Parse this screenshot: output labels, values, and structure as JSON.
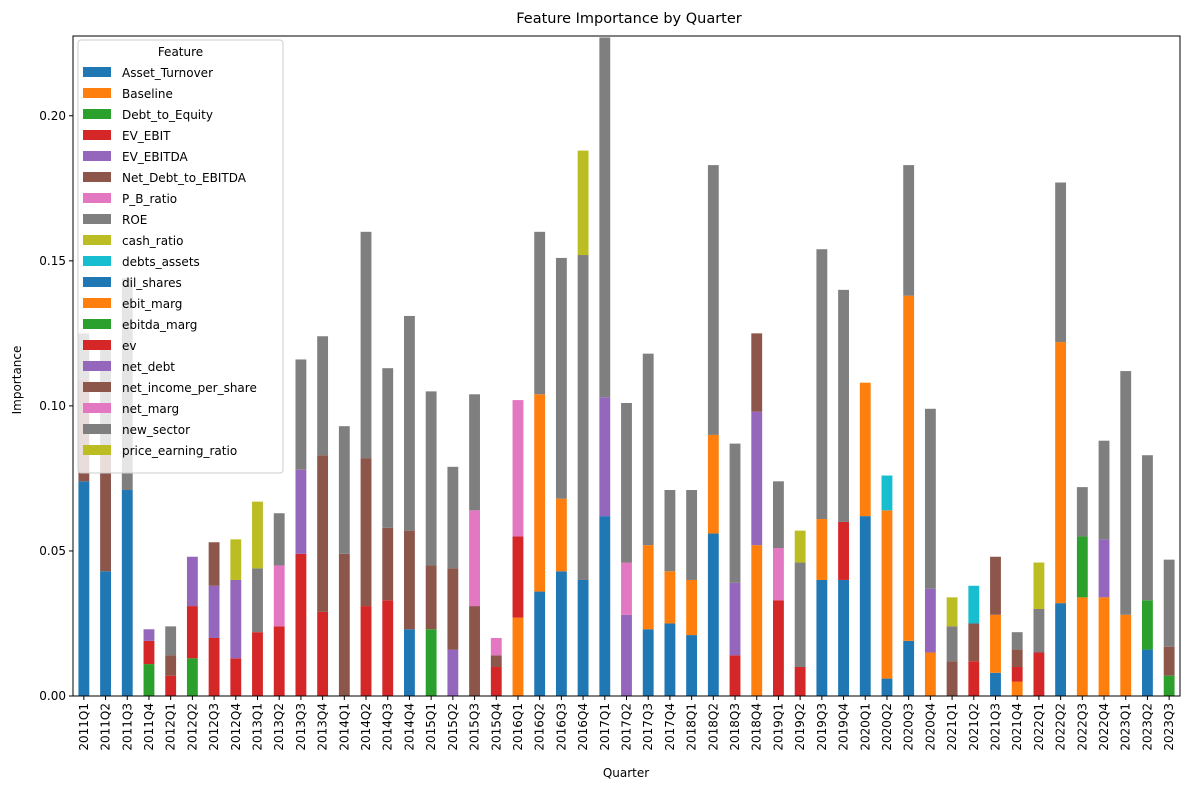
{
  "chart_data": {
    "type": "bar",
    "stacked": true,
    "title": "Feature Importance by Quarter",
    "xlabel": "Quarter",
    "ylabel": "Importance",
    "ylim": [
      0,
      0.2275
    ],
    "yticks": [
      0.0,
      0.05,
      0.1,
      0.15,
      0.2
    ],
    "ytick_labels": [
      "0.00",
      "0.05",
      "0.10",
      "0.15",
      "0.20"
    ],
    "grid": false,
    "legend": {
      "title": "Feature",
      "placement": "top-left"
    },
    "categories": [
      "2011Q1",
      "2011Q2",
      "2011Q3",
      "2011Q4",
      "2012Q1",
      "2012Q2",
      "2012Q3",
      "2012Q4",
      "2013Q1",
      "2013Q2",
      "2013Q3",
      "2013Q4",
      "2014Q1",
      "2014Q2",
      "2014Q3",
      "2014Q4",
      "2015Q1",
      "2015Q2",
      "2015Q3",
      "2015Q4",
      "2016Q1",
      "2016Q2",
      "2016Q3",
      "2016Q4",
      "2017Q1",
      "2017Q2",
      "2017Q3",
      "2017Q4",
      "2018Q1",
      "2018Q2",
      "2018Q3",
      "2018Q4",
      "2019Q1",
      "2019Q2",
      "2019Q3",
      "2019Q4",
      "2020Q1",
      "2020Q2",
      "2020Q3",
      "2020Q4",
      "2021Q1",
      "2021Q2",
      "2021Q3",
      "2021Q4",
      "2022Q1",
      "2022Q2",
      "2022Q3",
      "2022Q4",
      "2023Q1",
      "2023Q2",
      "2023Q3"
    ],
    "series": [
      {
        "name": "Asset_Turnover",
        "color": "#1f77b4",
        "values": [
          0.074,
          0.043,
          0.071,
          0,
          0,
          0,
          0,
          0,
          0,
          0,
          0,
          0,
          0,
          0,
          0,
          0.023,
          0,
          0,
          0,
          0,
          0,
          0.036,
          0.043,
          0.04,
          0.062,
          0,
          0.023,
          0.025,
          0.021,
          0.056,
          0,
          0,
          0,
          0,
          0.04,
          0.04,
          0.062,
          0.006,
          0.019,
          0,
          0,
          0,
          0.008,
          0,
          0,
          0.032,
          0,
          0,
          0,
          0.016,
          0
        ]
      },
      {
        "name": "Baseline",
        "color": "#ff7f0e",
        "values": [
          0,
          0,
          0,
          0,
          0,
          0,
          0,
          0,
          0,
          0,
          0,
          0,
          0,
          0,
          0,
          0,
          0,
          0,
          0,
          0,
          0.027,
          0.068,
          0.025,
          0,
          0,
          0,
          0.029,
          0.018,
          0.019,
          0.034,
          0,
          0.052,
          0,
          0,
          0.021,
          0,
          0.046,
          0.058,
          0.119,
          0.015,
          0,
          0,
          0.02,
          0.005,
          0,
          0.09,
          0.034,
          0.034,
          0.028,
          0,
          0
        ]
      },
      {
        "name": "Debt_to_Equity",
        "color": "#2ca02c",
        "values": [
          0,
          0,
          0,
          0.011,
          0,
          0.013,
          0,
          0,
          0,
          0,
          0,
          0,
          0,
          0,
          0,
          0,
          0.023,
          0,
          0,
          0,
          0,
          0,
          0,
          0,
          0,
          0,
          0,
          0,
          0,
          0,
          0,
          0,
          0,
          0,
          0,
          0,
          0,
          0,
          0,
          0,
          0,
          0,
          0,
          0,
          0,
          0,
          0.021,
          0,
          0,
          0.017,
          0.007
        ]
      },
      {
        "name": "EV_EBIT",
        "color": "#d62728",
        "values": [
          0,
          0,
          0,
          0.008,
          0.007,
          0.018,
          0.02,
          0.013,
          0.022,
          0.024,
          0.049,
          0.029,
          0,
          0.031,
          0.033,
          0,
          0,
          0,
          0,
          0.01,
          0.028,
          0,
          0,
          0,
          0,
          0,
          0,
          0,
          0,
          0,
          0.014,
          0,
          0.033,
          0.01,
          0,
          0.02,
          0,
          0,
          0,
          0,
          0,
          0.012,
          0,
          0.005,
          0.015,
          0,
          0,
          0,
          0,
          0,
          0
        ]
      },
      {
        "name": "EV_EBITDA",
        "color": "#9467bd",
        "values": [
          0,
          0,
          0,
          0.004,
          0,
          0.017,
          0.018,
          0.027,
          0,
          0,
          0.029,
          0,
          0,
          0,
          0,
          0,
          0,
          0.016,
          0,
          0,
          0,
          0,
          0,
          0,
          0.041,
          0.028,
          0,
          0,
          0,
          0,
          0.025,
          0.046,
          0,
          0,
          0,
          0,
          0,
          0,
          0,
          0.022,
          0,
          0,
          0,
          0,
          0,
          0,
          0,
          0.02,
          0,
          0,
          0
        ]
      },
      {
        "name": "Net_Debt_to_EBITDA",
        "color": "#8c564b",
        "values": [
          0.035,
          0.042,
          0,
          0,
          0.007,
          0,
          0.015,
          0,
          0,
          0,
          0,
          0.054,
          0.049,
          0.051,
          0.025,
          0.034,
          0.022,
          0.028,
          0.031,
          0.004,
          0,
          0,
          0,
          0,
          0,
          0,
          0,
          0,
          0,
          0,
          0,
          0.027,
          0,
          0,
          0,
          0,
          0,
          0,
          0,
          0,
          0.012,
          0.013,
          0.02,
          0.006,
          0,
          0,
          0,
          0,
          0,
          0,
          0.01
        ]
      },
      {
        "name": "P_B_ratio",
        "color": "#e377c2",
        "values": [
          0,
          0,
          0,
          0,
          0,
          0,
          0,
          0,
          0,
          0.021,
          0,
          0,
          0,
          0,
          0,
          0,
          0,
          0,
          0.033,
          0.006,
          0.047,
          0,
          0,
          0,
          0,
          0.018,
          0,
          0,
          0,
          0,
          0,
          0,
          0.018,
          0,
          0,
          0,
          0,
          0,
          0,
          0,
          0,
          0,
          0,
          0,
          0,
          0,
          0,
          0,
          0,
          0,
          0
        ]
      },
      {
        "name": "ROE",
        "color": "#7f7f7f",
        "values": [
          0.016,
          0.037,
          0.073,
          0,
          0.01,
          0,
          0,
          0,
          0.022,
          0.018,
          0.038,
          0.041,
          0.044,
          0.078,
          0.055,
          0.074,
          0.06,
          0.035,
          0.04,
          0,
          0,
          0.056,
          0.083,
          0.112,
          0.124,
          0.055,
          0.066,
          0.028,
          0.031,
          0.093,
          0.048,
          0,
          0.023,
          0.036,
          0.093,
          0.08,
          0,
          0,
          0.045,
          0.062,
          0.012,
          0,
          0,
          0.006,
          0.015,
          0.055,
          0.017,
          0.034,
          0.084,
          0.05,
          0.03
        ]
      },
      {
        "name": "cash_ratio",
        "color": "#bcbd22",
        "values": [
          0,
          0,
          0,
          0,
          0,
          0,
          0,
          0.014,
          0.023,
          0,
          0,
          0,
          0,
          0,
          0,
          0,
          0,
          0,
          0,
          0,
          0,
          0,
          0,
          0.036,
          0,
          0,
          0,
          0,
          0,
          0,
          0,
          0,
          0,
          0.011,
          0,
          0,
          0,
          0,
          0,
          0,
          0.01,
          0,
          0,
          0,
          0.016,
          0,
          0,
          0,
          0,
          0,
          0
        ]
      },
      {
        "name": "debts_assets",
        "color": "#17becf",
        "values": [
          0,
          0,
          0,
          0,
          0,
          0,
          0,
          0,
          0,
          0,
          0,
          0,
          0,
          0,
          0,
          0,
          0,
          0,
          0,
          0,
          0,
          0,
          0,
          0,
          0,
          0,
          0,
          0,
          0,
          0,
          0,
          0,
          0,
          0,
          0,
          0,
          0,
          0.012,
          0,
          0,
          0,
          0.013,
          0,
          0,
          0,
          0,
          0,
          0,
          0,
          0,
          0
        ]
      },
      {
        "name": "dil_shares",
        "color": "#1f77b4",
        "values": [
          0,
          0,
          0,
          0,
          0,
          0,
          0,
          0,
          0,
          0,
          0,
          0,
          0,
          0,
          0,
          0,
          0,
          0,
          0,
          0,
          0,
          0,
          0,
          0,
          0,
          0,
          0,
          0,
          0,
          0,
          0,
          0,
          0,
          0,
          0,
          0,
          0,
          0,
          0,
          0,
          0,
          0,
          0,
          0,
          0,
          0,
          0,
          0,
          0,
          0,
          0
        ]
      },
      {
        "name": "ebit_marg",
        "color": "#ff7f0e",
        "values": [
          0,
          0,
          0,
          0,
          0,
          0,
          0,
          0,
          0,
          0,
          0,
          0,
          0,
          0,
          0,
          0,
          0,
          0,
          0,
          0,
          0,
          0,
          0,
          0,
          0,
          0,
          0,
          0,
          0,
          0,
          0,
          0,
          0,
          0,
          0,
          0,
          0,
          0,
          0,
          0,
          0,
          0,
          0,
          0,
          0,
          0,
          0,
          0,
          0,
          0,
          0
        ]
      },
      {
        "name": "ebitda_marg",
        "color": "#2ca02c",
        "values": [
          0,
          0,
          0,
          0,
          0,
          0,
          0,
          0,
          0,
          0,
          0,
          0,
          0,
          0,
          0,
          0,
          0,
          0,
          0,
          0,
          0,
          0,
          0,
          0,
          0,
          0,
          0,
          0,
          0,
          0,
          0,
          0,
          0,
          0,
          0,
          0,
          0,
          0,
          0,
          0,
          0,
          0,
          0,
          0,
          0,
          0,
          0,
          0,
          0,
          0,
          0
        ]
      },
      {
        "name": "ev",
        "color": "#d62728",
        "values": [
          0,
          0,
          0,
          0,
          0,
          0,
          0,
          0,
          0,
          0,
          0,
          0,
          0,
          0,
          0,
          0,
          0,
          0,
          0,
          0,
          0,
          0,
          0,
          0,
          0,
          0,
          0,
          0,
          0,
          0,
          0,
          0,
          0,
          0,
          0,
          0,
          0,
          0,
          0,
          0,
          0,
          0,
          0,
          0,
          0,
          0,
          0,
          0,
          0,
          0,
          0
        ]
      },
      {
        "name": "net_debt",
        "color": "#9467bd",
        "values": [
          0,
          0,
          0,
          0,
          0,
          0,
          0,
          0,
          0,
          0,
          0,
          0,
          0,
          0,
          0,
          0,
          0,
          0,
          0,
          0,
          0,
          0,
          0,
          0,
          0,
          0,
          0,
          0,
          0,
          0,
          0,
          0,
          0,
          0,
          0,
          0,
          0,
          0,
          0,
          0,
          0,
          0,
          0,
          0,
          0,
          0,
          0,
          0,
          0,
          0,
          0
        ]
      },
      {
        "name": "net_income_per_share",
        "color": "#8c564b",
        "values": [
          0,
          0,
          0,
          0,
          0,
          0,
          0,
          0,
          0,
          0,
          0,
          0,
          0,
          0,
          0,
          0,
          0,
          0,
          0,
          0,
          0,
          0,
          0,
          0,
          0,
          0,
          0,
          0,
          0,
          0,
          0,
          0,
          0,
          0,
          0,
          0,
          0,
          0,
          0,
          0,
          0,
          0,
          0,
          0,
          0,
          0,
          0,
          0,
          0,
          0,
          0
        ]
      },
      {
        "name": "net_marg",
        "color": "#e377c2",
        "values": [
          0,
          0,
          0,
          0,
          0,
          0,
          0,
          0,
          0,
          0,
          0,
          0,
          0,
          0,
          0,
          0,
          0,
          0,
          0,
          0,
          0,
          0,
          0,
          0,
          0,
          0,
          0,
          0,
          0,
          0,
          0,
          0,
          0,
          0,
          0,
          0,
          0,
          0,
          0,
          0,
          0,
          0,
          0,
          0,
          0,
          0,
          0,
          0,
          0,
          0,
          0
        ]
      },
      {
        "name": "new_sector",
        "color": "#7f7f7f",
        "values": [
          0,
          0,
          0,
          0,
          0,
          0,
          0,
          0,
          0,
          0,
          0,
          0,
          0,
          0,
          0,
          0,
          0,
          0,
          0,
          0,
          0,
          0,
          0,
          0,
          0,
          0,
          0,
          0,
          0,
          0,
          0,
          0,
          0,
          0,
          0,
          0,
          0,
          0,
          0,
          0,
          0,
          0,
          0,
          0,
          0,
          0,
          0,
          0,
          0,
          0,
          0
        ]
      },
      {
        "name": "price_earning_ratio",
        "color": "#bcbd22",
        "values": [
          0,
          0,
          0,
          0,
          0,
          0,
          0,
          0,
          0,
          0,
          0,
          0,
          0,
          0,
          0,
          0,
          0,
          0,
          0,
          0,
          0,
          0,
          0,
          0,
          0,
          0,
          0,
          0,
          0,
          0,
          0,
          0,
          0,
          0,
          0,
          0,
          0,
          0,
          0,
          0,
          0,
          0,
          0,
          0,
          0,
          0,
          0,
          0,
          0,
          0,
          0
        ]
      }
    ]
  }
}
